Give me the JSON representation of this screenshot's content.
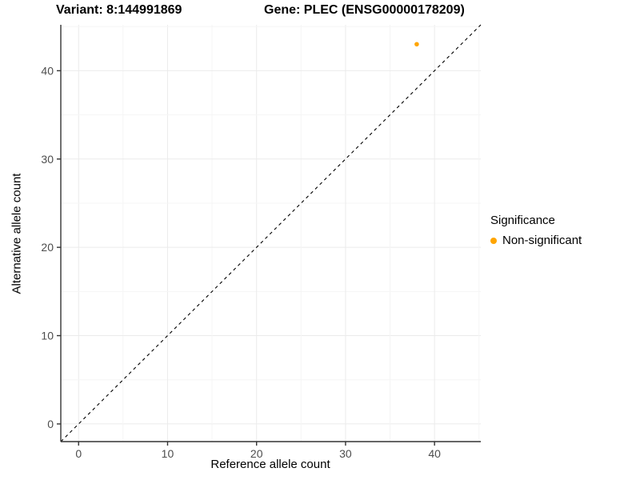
{
  "header": {
    "variant_title": "Variant: 8:144991869",
    "gene_title": "Gene: PLEC (ENSG00000178209)"
  },
  "axes": {
    "x_label": "Reference allele count",
    "y_label": "Alternative allele count"
  },
  "legend": {
    "title": "Significance",
    "items": [
      {
        "label": "Non-significant",
        "color": "#FFA500"
      }
    ]
  },
  "chart_data": {
    "type": "scatter",
    "title": "Variant: 8:144991869 — Gene: PLEC (ENSG00000178209)",
    "xlabel": "Reference allele count",
    "ylabel": "Alternative allele count",
    "xlim": [
      -2,
      45.2
    ],
    "ylim": [
      -2,
      45.2
    ],
    "xticks": [
      0,
      10,
      20,
      30,
      40
    ],
    "yticks": [
      0,
      10,
      20,
      30,
      40
    ],
    "grid": {
      "on": true,
      "minor_every": 5,
      "major_every": 10,
      "major_color": "#EBEBEB",
      "minor_color": "#F5F5F5"
    },
    "axis_line_color": "#333333",
    "tick_label_color": "#4D4D4D",
    "reference_line": {
      "type": "identity",
      "equation": "y = x",
      "style": "dashed",
      "color": "#000000"
    },
    "series": [
      {
        "name": "Non-significant",
        "color": "#FFA500",
        "points": [
          [
            38,
            43
          ]
        ]
      }
    ],
    "legend_position": "right",
    "legend_title": "Significance"
  }
}
